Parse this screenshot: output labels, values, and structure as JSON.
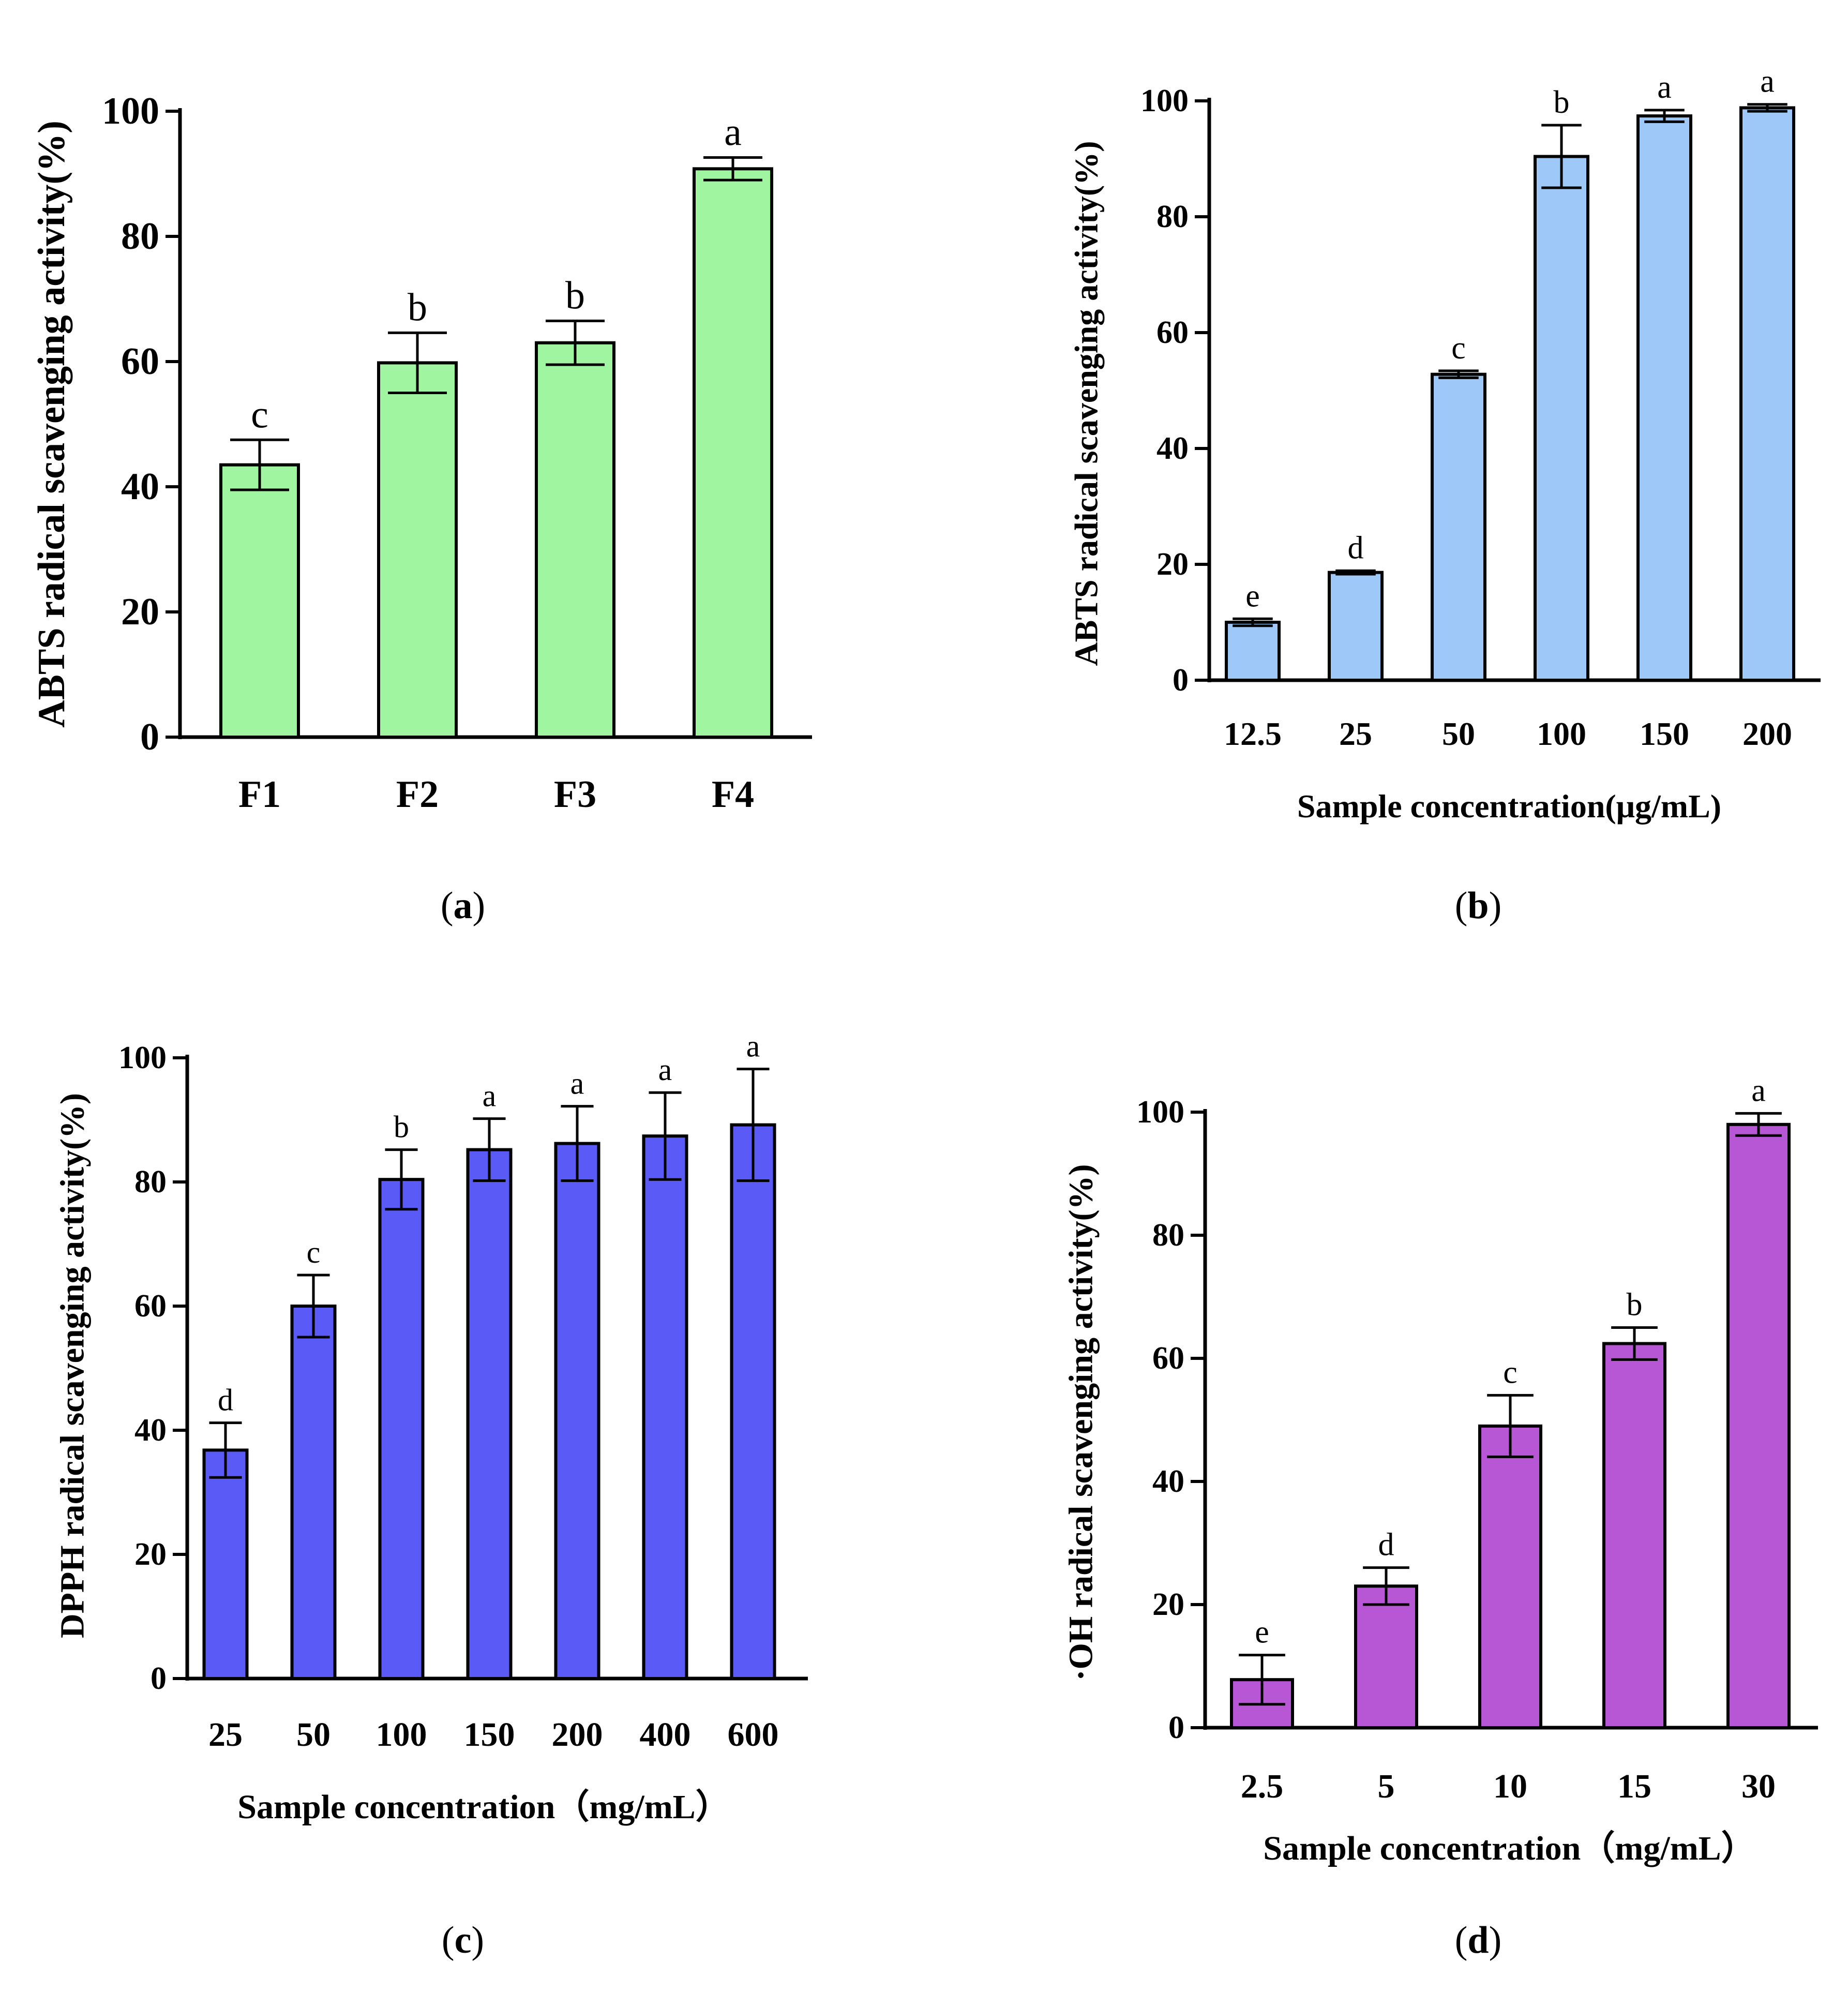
{
  "chart_data": [
    {
      "type": "bar",
      "panel": "a",
      "caption_letter": "a",
      "title": "",
      "xlabel": "",
      "ylabel": "ABTS radical scavenging activity(%)",
      "ylim": [
        0,
        100
      ],
      "yticks": [
        0,
        20,
        40,
        60,
        80,
        100
      ],
      "categories": [
        "F1",
        "F2",
        "F3",
        "F4"
      ],
      "values": [
        43.5,
        59.8,
        63.0,
        90.8
      ],
      "errors": [
        4.0,
        4.8,
        3.5,
        1.8
      ],
      "significance": [
        "c",
        "b",
        "b",
        "a"
      ],
      "color": "#a0f5a0"
    },
    {
      "type": "bar",
      "panel": "b",
      "caption_letter": "b",
      "title": "",
      "xlabel": "Sample concentration(μg/mL)",
      "ylabel": "ABTS radical scavenging activity(%)",
      "ylim": [
        0,
        100
      ],
      "yticks": [
        0,
        20,
        40,
        60,
        80,
        100
      ],
      "categories": [
        "12.5",
        "25",
        "50",
        "100",
        "150",
        "200"
      ],
      "values": [
        10.0,
        18.6,
        52.8,
        90.4,
        97.4,
        98.8
      ],
      "errors": [
        0.6,
        0.3,
        0.6,
        5.4,
        1.0,
        0.6
      ],
      "significance": [
        "e",
        "d",
        "c",
        "b",
        "a",
        "a"
      ],
      "color": "#9ec8f7"
    },
    {
      "type": "bar",
      "panel": "c",
      "caption_letter": "c",
      "title": "",
      "xlabel": "Sample concentration（mg/mL）",
      "ylabel": "DPPH radical scavenging activity(%)",
      "ylim": [
        0,
        100
      ],
      "yticks": [
        0,
        20,
        40,
        60,
        80,
        100
      ],
      "categories": [
        "25",
        "50",
        "100",
        "150",
        "200",
        "400",
        "600"
      ],
      "values": [
        36.8,
        60.0,
        80.4,
        85.2,
        86.2,
        87.4,
        89.2
      ],
      "errors": [
        4.4,
        5.0,
        4.8,
        5.0,
        6.0,
        7.0,
        9.0
      ],
      "significance": [
        "d",
        "c",
        "b",
        "a",
        "a",
        "a",
        "a"
      ],
      "color": "#5a5af7"
    },
    {
      "type": "bar",
      "panel": "d",
      "caption_letter": "d",
      "title": "",
      "xlabel": "Sample concentration（mg/mL）",
      "ylabel": "·OH radical scavenging activity(%)",
      "ylim": [
        0,
        100
      ],
      "yticks": [
        0,
        20,
        40,
        60,
        80,
        100
      ],
      "categories": [
        "2.5",
        "5",
        "10",
        "15",
        "30"
      ],
      "values": [
        7.8,
        23.0,
        49.0,
        62.4,
        98.0
      ],
      "errors": [
        4.0,
        3.0,
        5.0,
        2.6,
        1.8
      ],
      "significance": [
        "e",
        "d",
        "c",
        "b",
        "a"
      ],
      "color": "#b857d6"
    }
  ]
}
